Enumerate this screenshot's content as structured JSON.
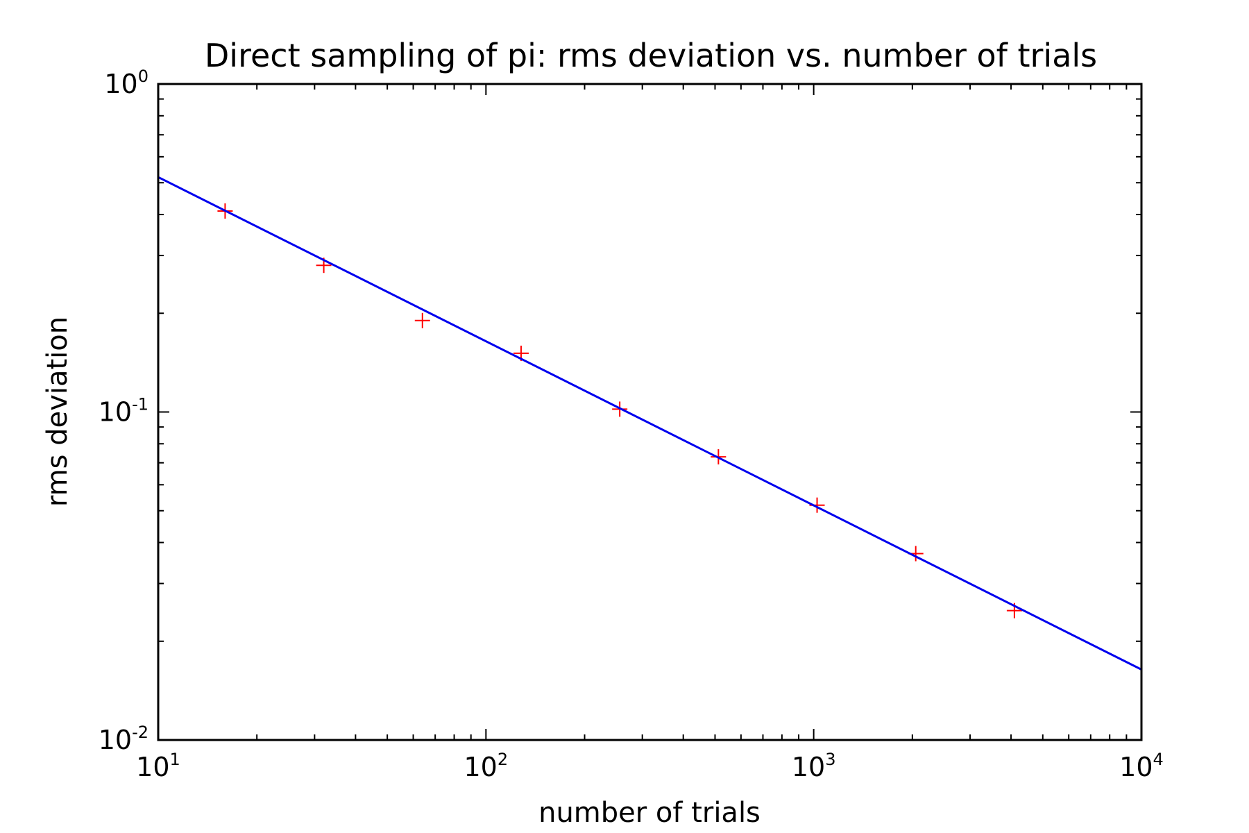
{
  "chart_data": {
    "type": "scatter",
    "title": "Direct sampling of pi: rms deviation vs. number of trials",
    "xlabel": "number of trials",
    "ylabel": "rms deviation",
    "xscale": "log",
    "yscale": "log",
    "xlim": [
      10,
      10000
    ],
    "ylim": [
      0.01,
      1
    ],
    "grid": false,
    "legend": "none",
    "x_ticks": [
      {
        "value": 10,
        "base": "10",
        "exp": "1"
      },
      {
        "value": 100,
        "base": "10",
        "exp": "2"
      },
      {
        "value": 1000,
        "base": "10",
        "exp": "3"
      },
      {
        "value": 10000,
        "base": "10",
        "exp": "4"
      }
    ],
    "y_ticks": [
      {
        "value": 0.01,
        "base": "10",
        "exp": "-2"
      },
      {
        "value": 0.1,
        "base": "10",
        "exp": "-1"
      },
      {
        "value": 1,
        "base": "10",
        "exp": "0"
      }
    ],
    "series": [
      {
        "kind": "markers",
        "marker": "+",
        "color": "#ff0000",
        "x": [
          16,
          32,
          64,
          128,
          256,
          512,
          1024,
          2048,
          4096
        ],
        "y": [
          0.41,
          0.28,
          0.19,
          0.151,
          0.102,
          0.073,
          0.052,
          0.037,
          0.0248
        ]
      },
      {
        "kind": "line",
        "color": "#0000ee",
        "x": [
          10,
          10000
        ],
        "y": [
          0.52,
          0.0164
        ]
      }
    ]
  }
}
